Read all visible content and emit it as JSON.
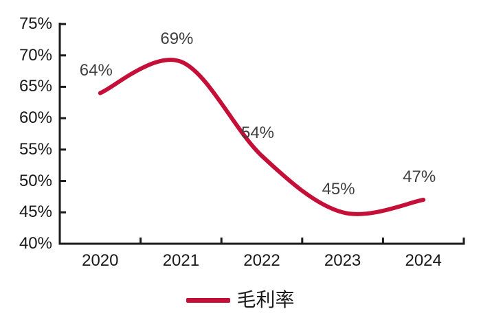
{
  "chart_data": {
    "type": "line",
    "title": "",
    "xlabel": "",
    "ylabel": "",
    "categories": [
      "2020",
      "2021",
      "2022",
      "2023",
      "2024"
    ],
    "series": [
      {
        "name": "毛利率",
        "values": [
          64,
          69,
          54,
          45,
          47
        ],
        "data_labels": [
          "64%",
          "69%",
          "54%",
          "45%",
          "47%"
        ],
        "color": "#c41038",
        "smooth": true,
        "line_width": 6
      }
    ],
    "ylim": [
      40,
      75
    ],
    "ytick_step": 5,
    "ytick_labels": [
      "40%",
      "45%",
      "50%",
      "55%",
      "60%",
      "65%",
      "70%",
      "75%"
    ],
    "grid": false,
    "legend_position": "bottom",
    "axis_color": "#1a1a1a",
    "data_label_color": "#3f3f3f"
  },
  "legend": {
    "label": "毛利率",
    "marker_color": "#c41038"
  }
}
